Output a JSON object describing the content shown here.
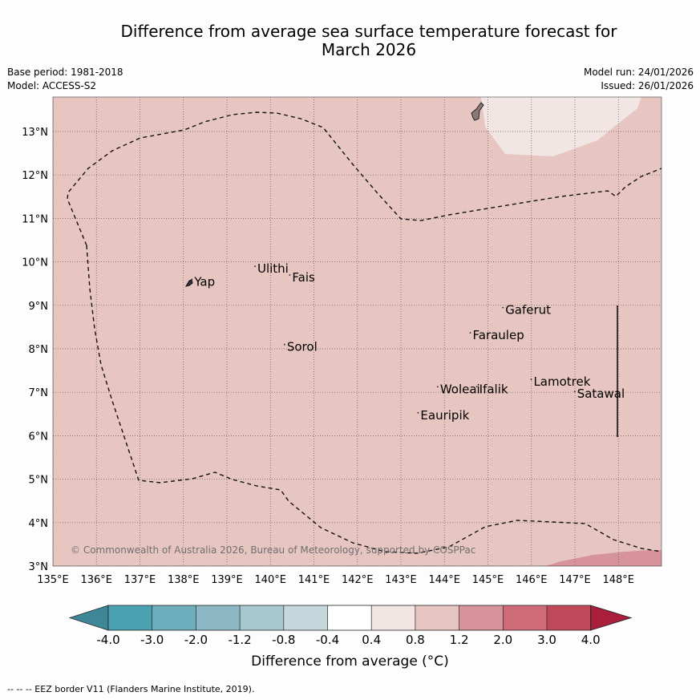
{
  "header": {
    "title_line1": "Difference from average sea surface temperature forecast for",
    "title_line2": "March 2026",
    "base_period": "Base period: 1981-2018",
    "model": "Model: ACCESS-S2",
    "model_run": "Model run: 24/01/2026",
    "issued": "Issued: 26/01/2026"
  },
  "map": {
    "lon_range": [
      135,
      149
    ],
    "lat_range": [
      3,
      13.8
    ],
    "lon_ticks": [
      135,
      136,
      137,
      138,
      139,
      140,
      141,
      142,
      143,
      144,
      145,
      146,
      147,
      148
    ],
    "lon_labels": [
      "135°E",
      "136°E",
      "137°E",
      "138°E",
      "139°E",
      "140°E",
      "141°E",
      "142°E",
      "143°E",
      "144°E",
      "145°E",
      "146°E",
      "147°E",
      "148°E"
    ],
    "lat_ticks": [
      3,
      4,
      5,
      6,
      7,
      8,
      9,
      10,
      11,
      12,
      13
    ],
    "lat_labels": [
      "3°N",
      "4°N",
      "5°N",
      "6°N",
      "7°N",
      "8°N",
      "9°N",
      "10°N",
      "11°N",
      "12°N",
      "13°N"
    ],
    "background_color": "#e7c6c2",
    "places": [
      {
        "name": "Yap",
        "lon": 138.25,
        "lat": 9.45
      },
      {
        "name": "Ulithi",
        "lon": 139.7,
        "lat": 9.75
      },
      {
        "name": "Fais",
        "lon": 140.5,
        "lat": 9.55
      },
      {
        "name": "Sorol",
        "lon": 140.38,
        "lat": 7.95
      },
      {
        "name": "Gaferut",
        "lon": 145.4,
        "lat": 8.8
      },
      {
        "name": "Faraulep",
        "lon": 144.65,
        "lat": 8.22
      },
      {
        "name": "Lamotrek",
        "lon": 146.05,
        "lat": 7.15
      },
      {
        "name": "Satawal",
        "lon": 147.05,
        "lat": 6.87
      },
      {
        "name": "Woleai",
        "lon": 143.9,
        "lat": 6.98
      },
      {
        "name": "Ifalik",
        "lon": 144.8,
        "lat": 6.98
      },
      {
        "name": "Eauripik",
        "lon": 143.45,
        "lat": 6.38
      }
    ],
    "copyright": "© Commonwealth of Australia 2026, Bureau of Meteorology, supported by COSPPac"
  },
  "colorbar": {
    "label": "Difference from average (°C)",
    "tick_labels": [
      "-4.0",
      "-3.0",
      "-2.0",
      "-1.2",
      "-0.8",
      "-0.4",
      "0.4",
      "0.8",
      "1.2",
      "2.0",
      "3.0",
      "4.0"
    ],
    "colors": [
      "#3d8796",
      "#4aa1b1",
      "#6eadbb",
      "#8bb8c4",
      "#a8c8cf",
      "#c5d9dc",
      "#ffffff",
      "#f2e6e4",
      "#e7c6c2",
      "#d7939b",
      "#ce6b77",
      "#c14858",
      "#aa1e3c"
    ]
  },
  "footnote": "-- -- -- EEZ border V11 (Flanders Marine Institute, 2019)."
}
